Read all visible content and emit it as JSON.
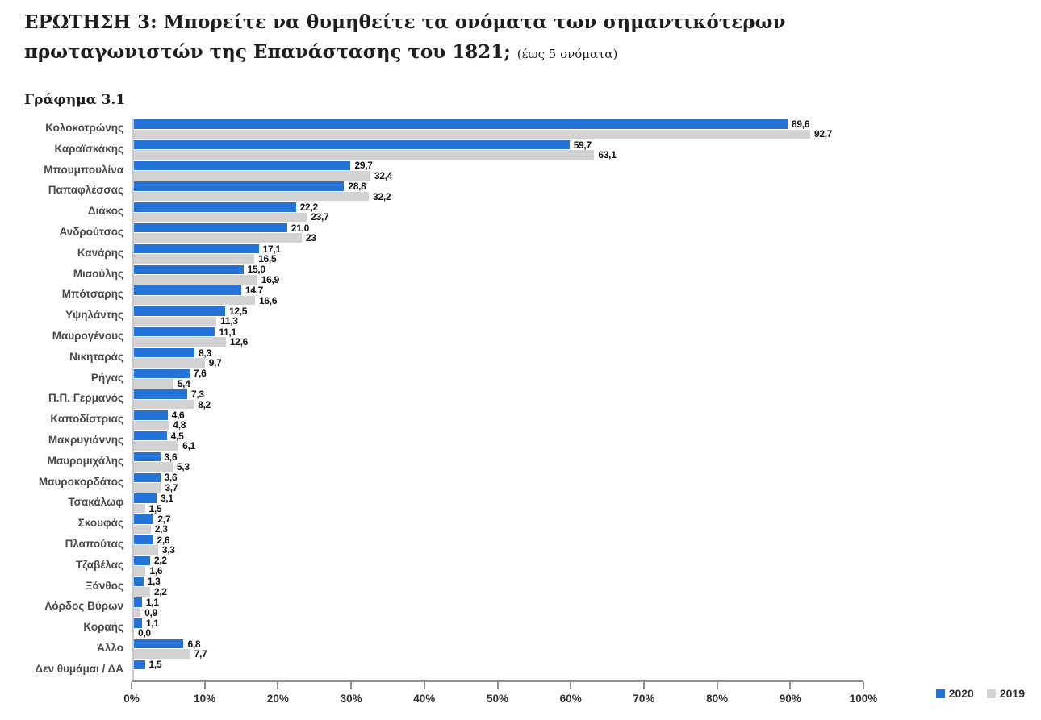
{
  "page": {
    "title_main": "ΕΡΩΤΗΣΗ 3: Μπορείτε να θυμηθείτε τα ονόματα των σημαντικότερων πρωταγωνιστών της Επανάστασης του 1821;",
    "title_note": "(έως 5 ονόματα)",
    "chart_label": "Γράφημα 3.1"
  },
  "chart_data": {
    "type": "bar",
    "orientation": "horizontal",
    "title": "Γράφημα 3.1",
    "xlim": [
      0,
      100
    ],
    "x_ticks": [
      "0%",
      "10%",
      "20%",
      "30%",
      "40%",
      "50%",
      "60%",
      "70%",
      "80%",
      "90%",
      "100%"
    ],
    "grid": false,
    "legend_position": "bottom-right",
    "categories": [
      "Κολοκοτρώνης",
      "Καραϊσκάκης",
      "Μπουμπουλίνα",
      "Παπαφλέσσας",
      "Διάκος",
      "Ανδρούτσος",
      "Κανάρης",
      "Μιαούλης",
      "Μπότσαρης",
      "Υψηλάντης",
      "Μαυρογένους",
      "Νικηταράς",
      "Ρήγας",
      "Π.Π. Γερμανός",
      "Καποδίστριας",
      "Μακρυγιάννης",
      "Μαυρομιχάλης",
      "Μαυροκορδάτος",
      "Τσακάλωφ",
      "Σκουφάς",
      "Πλαπούτας",
      "Τζαβέλας",
      "Ξάνθος",
      "Λόρδος Βύρων",
      "Κοραής",
      "Άλλο",
      "Δεν θυμάμαι / ΔΑ"
    ],
    "series": [
      {
        "name": "2020",
        "color": "#2473d9",
        "values": [
          89.6,
          59.7,
          29.7,
          28.8,
          22.2,
          21.0,
          17.1,
          15.0,
          14.7,
          12.5,
          11.1,
          8.3,
          7.6,
          7.3,
          4.6,
          4.5,
          3.6,
          3.6,
          3.1,
          2.7,
          2.6,
          2.2,
          1.3,
          1.1,
          1.1,
          6.8,
          1.5
        ]
      },
      {
        "name": "2019",
        "color": "#d2d2d2",
        "values": [
          92.7,
          63.1,
          32.4,
          32.2,
          23.7,
          23,
          16.5,
          16.9,
          16.6,
          11.3,
          12.6,
          9.7,
          5.4,
          8.2,
          4.8,
          6.1,
          5.3,
          3.7,
          1.5,
          2.3,
          3.3,
          1.6,
          2.2,
          0.9,
          0.0,
          7.7,
          null
        ]
      }
    ],
    "value_labels": [
      [
        "89,6",
        "92,7"
      ],
      [
        "59,7",
        "63,1"
      ],
      [
        "29,7",
        "32,4"
      ],
      [
        "28,8",
        "32,2"
      ],
      [
        "22,2",
        "23,7"
      ],
      [
        "21,0",
        "23"
      ],
      [
        "17,1",
        "16,5"
      ],
      [
        "15,0",
        "16,9"
      ],
      [
        "14,7",
        "16,6"
      ],
      [
        "12,5",
        "11,3"
      ],
      [
        "11,1",
        "12,6"
      ],
      [
        "8,3",
        "9,7"
      ],
      [
        "7,6",
        "5,4"
      ],
      [
        "7,3",
        "8,2"
      ],
      [
        "4,6",
        "4,8"
      ],
      [
        "4,5",
        "6,1"
      ],
      [
        "3,6",
        "5,3"
      ],
      [
        "3,6",
        "3,7"
      ],
      [
        "3,1",
        "1,5"
      ],
      [
        "2,7",
        "2,3"
      ],
      [
        "2,6",
        "3,3"
      ],
      [
        "2,2",
        "1,6"
      ],
      [
        "1,3",
        "2,2"
      ],
      [
        "1,1",
        "0,9"
      ],
      [
        "1,1",
        "0,0"
      ],
      [
        "6,8",
        "7,7"
      ],
      [
        "1,5",
        null
      ]
    ],
    "legend": [
      {
        "label": "2020",
        "color": "#2473d9"
      },
      {
        "label": "2019",
        "color": "#d2d2d2"
      }
    ]
  }
}
